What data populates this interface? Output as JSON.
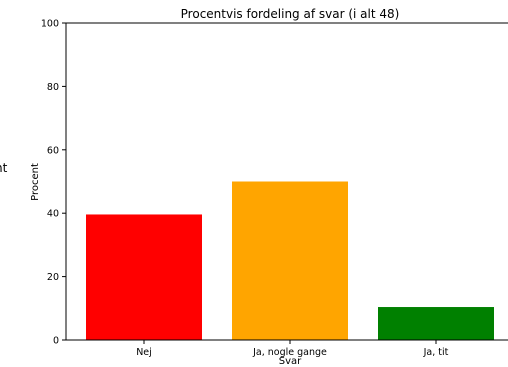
{
  "chart_data": {
    "type": "bar",
    "title": "Procentvis fordeling af svar (i alt 48)",
    "xlabel": "Svar",
    "ylabel": "Procent",
    "categories": [
      "Nej",
      "Ja, nogle gange",
      "Ja, tit"
    ],
    "values": [
      39.6,
      50.0,
      10.4
    ],
    "colors": [
      "#ff0000",
      "#ffa500",
      "#008000"
    ],
    "ylim": [
      0,
      100
    ],
    "yticks": [
      0,
      20,
      40,
      60,
      80,
      100
    ],
    "grid": false,
    "left_edge_glyph": "nt"
  }
}
